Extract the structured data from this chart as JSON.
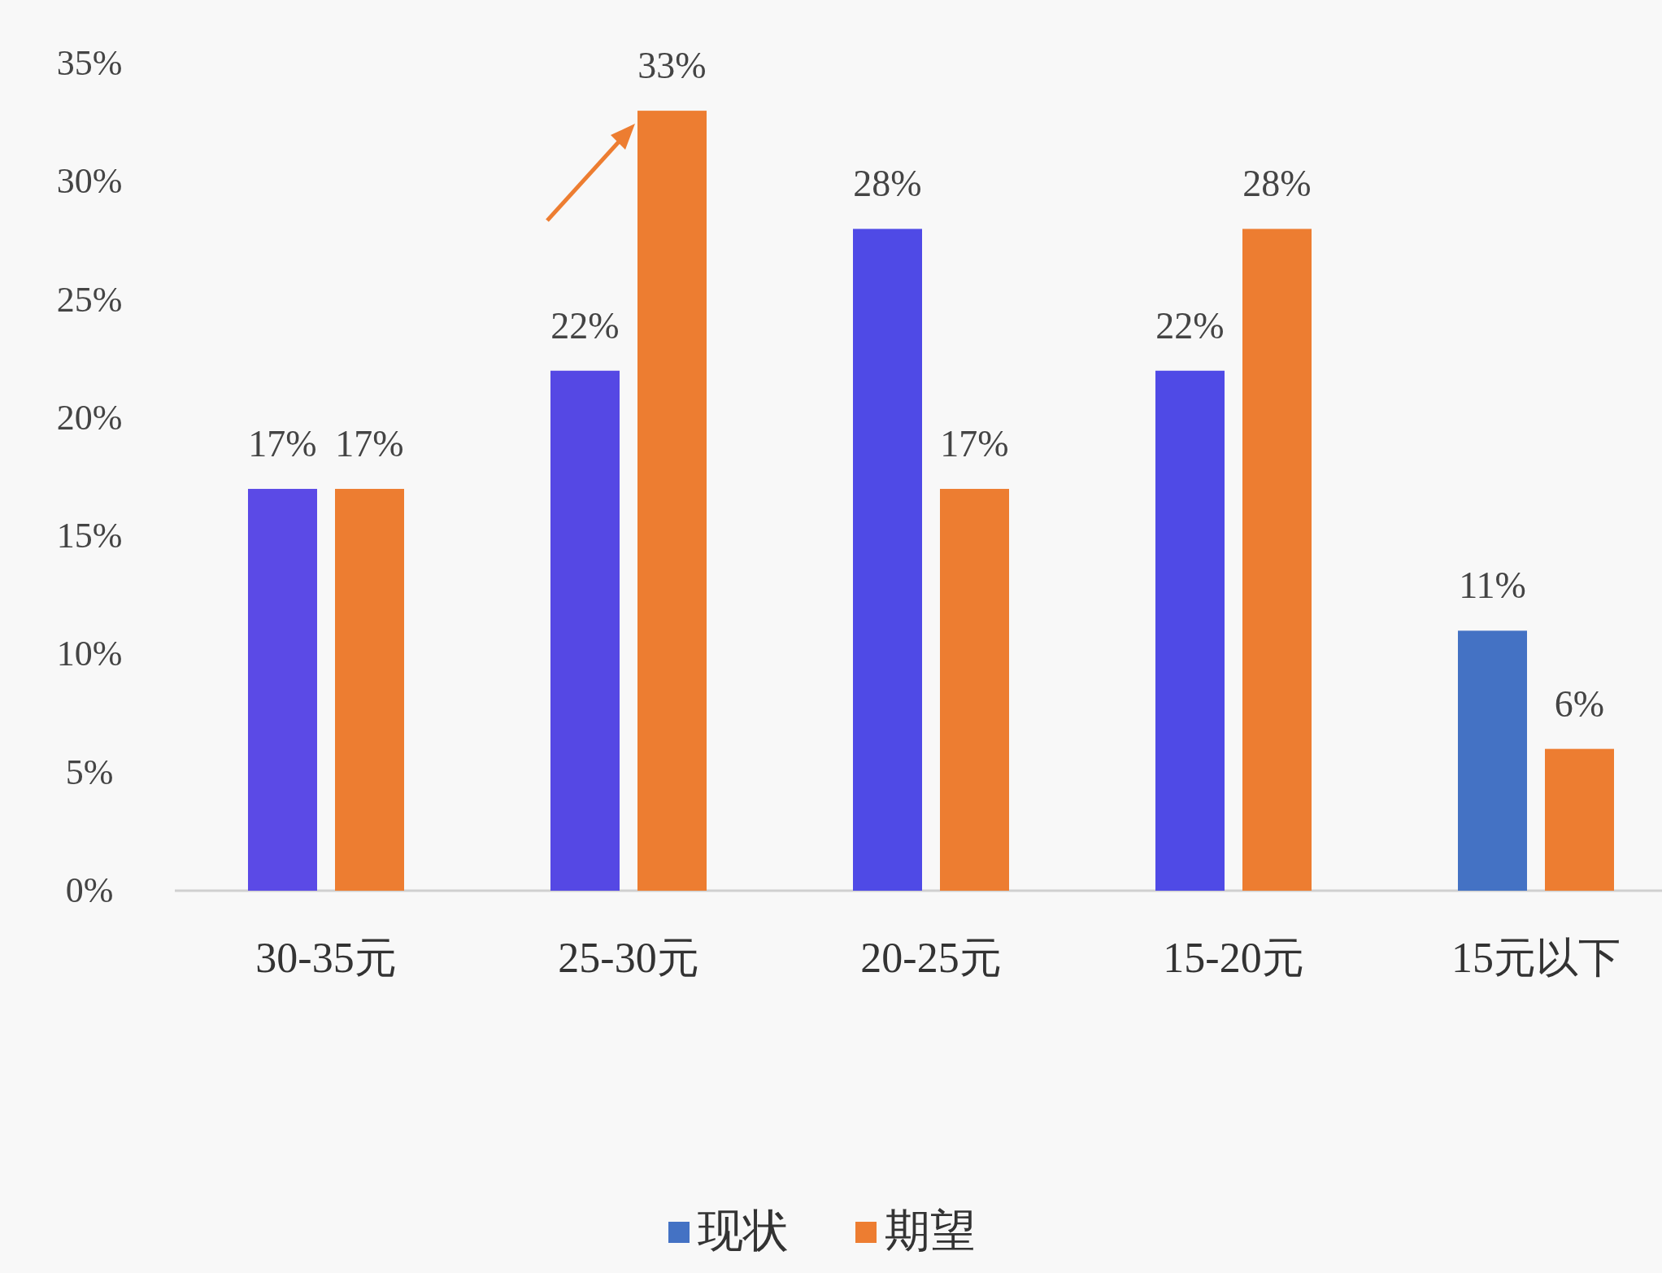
{
  "chart_data": {
    "type": "bar",
    "categories": [
      "30-35元",
      "25-30元",
      "20-25元",
      "15-20元",
      "15元以下"
    ],
    "series": [
      {
        "name": "现状",
        "color": "#4472c4",
        "colors": [
          "#5b4ae6",
          "#5548e4",
          "#4f4ae6",
          "#4f4ae6",
          "#4472c4"
        ],
        "values": [
          17,
          22,
          28,
          22,
          11
        ],
        "value_labels": [
          "17%",
          "22%",
          "28%",
          "22%",
          "11%"
        ]
      },
      {
        "name": "期望",
        "color": "#ed7d31",
        "values": [
          17,
          33,
          17,
          28,
          6
        ],
        "value_labels": [
          "17%",
          "33%",
          "17%",
          "28%",
          "6%"
        ]
      }
    ],
    "ylim": [
      0,
      35
    ],
    "yticks": [
      {
        "value": 0,
        "label": "0%"
      },
      {
        "value": 5,
        "label": "5%"
      },
      {
        "value": 10,
        "label": "10%"
      },
      {
        "value": 15,
        "label": "15%"
      },
      {
        "value": 20,
        "label": "20%"
      },
      {
        "value": 25,
        "label": "25%"
      },
      {
        "value": 30,
        "label": "30%"
      },
      {
        "value": 35,
        "label": "35%"
      }
    ],
    "grid": false,
    "legend": "bottom"
  }
}
